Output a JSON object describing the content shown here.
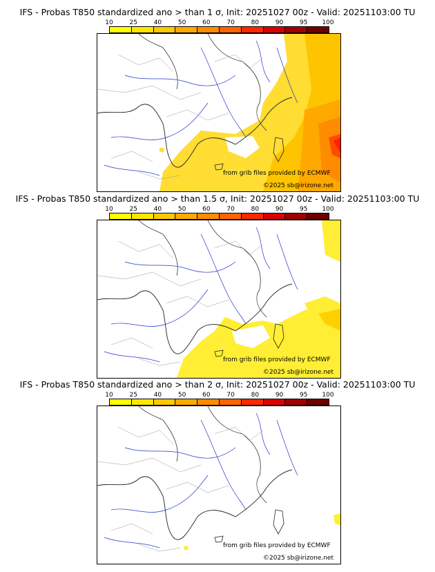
{
  "legend": {
    "ticks": [
      "10",
      "25",
      "40",
      "50",
      "60",
      "70",
      "80",
      "90",
      "95",
      "100"
    ],
    "colors": [
      "#ffff00",
      "#ffe600",
      "#ffc800",
      "#ffaa00",
      "#ff8c00",
      "#ff6400",
      "#ff2800",
      "#dc0000",
      "#a00000",
      "#6e0000"
    ]
  },
  "credits": {
    "source": "from grib files provided by ECMWF",
    "copyright": "©2025 sb@irizone.net"
  },
  "panels": [
    {
      "title": "IFS - Probas T850  standardized ano > than 1 σ, Init: 20251027 00z - Valid: 20251103:00 TU"
    },
    {
      "title": "IFS - Probas T850  standardized ano > than 1.5 σ, Init: 20251027 00z - Valid: 20251103:00 TU"
    },
    {
      "title": "IFS - Probas T850  standardized ano > than 2 σ, Init: 20251027 00z - Valid: 20251103:00 TU"
    }
  ]
}
